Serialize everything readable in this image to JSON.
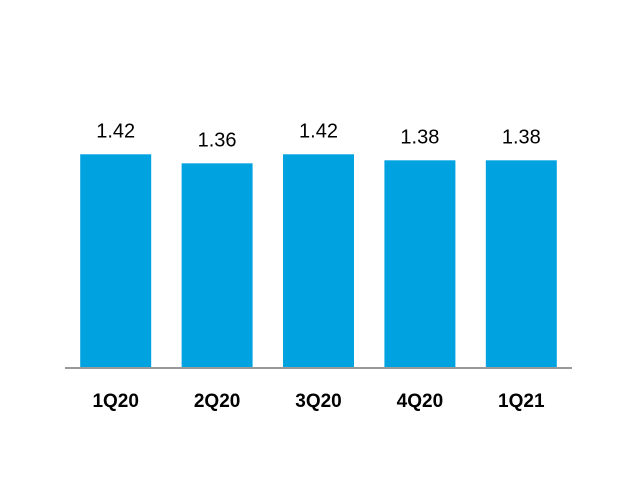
{
  "chart_data": {
    "type": "bar",
    "categories": [
      "1Q20",
      "2Q20",
      "3Q20",
      "4Q20",
      "1Q21"
    ],
    "values": [
      1.42,
      1.36,
      1.42,
      1.38,
      1.38
    ],
    "color": "#00a3e0",
    "ylim": [
      0,
      2
    ]
  }
}
